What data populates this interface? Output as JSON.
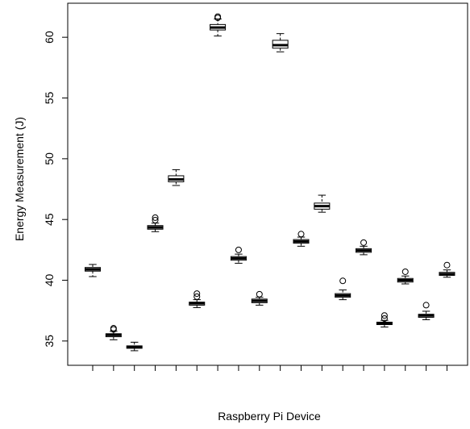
{
  "chart_data": {
    "type": "box",
    "title": "",
    "xlabel": "Raspberry Pi Device",
    "ylabel": "Energy Measurement (J)",
    "ylim": [
      33.0,
      62.8
    ],
    "yticks": [
      35,
      40,
      45,
      50,
      55,
      60
    ],
    "ytick_labels": [
      "35",
      "40",
      "45",
      "50",
      "55",
      "60"
    ],
    "x_tick_count": 18,
    "categories": [
      "",
      "",
      "",
      "",
      "",
      "",
      "",
      "",
      "",
      "",
      "",
      "",
      "",
      "",
      "",
      "",
      "",
      ""
    ],
    "boxes": [
      {
        "whisker_low": 40.3,
        "q1": 40.75,
        "median": 40.9,
        "q3": 41.05,
        "whisker_high": 41.3,
        "outliers": []
      },
      {
        "whisker_low": 35.1,
        "q1": 35.35,
        "median": 35.5,
        "q3": 35.6,
        "whisker_high": 35.8,
        "outliers": [
          35.95,
          36.05
        ]
      },
      {
        "whisker_low": 34.2,
        "q1": 34.4,
        "median": 34.5,
        "q3": 34.6,
        "whisker_high": 34.9,
        "outliers": []
      },
      {
        "whisker_low": 44.0,
        "q1": 44.2,
        "median": 44.35,
        "q3": 44.5,
        "whisker_high": 44.7,
        "outliers": [
          44.95,
          45.15
        ]
      },
      {
        "whisker_low": 47.8,
        "q1": 48.1,
        "median": 48.3,
        "q3": 48.6,
        "whisker_high": 49.1,
        "outliers": []
      },
      {
        "whisker_low": 37.75,
        "q1": 37.95,
        "median": 38.1,
        "q3": 38.2,
        "whisker_high": 38.4,
        "outliers": [
          38.65,
          38.9
        ]
      },
      {
        "whisker_low": 60.1,
        "q1": 60.6,
        "median": 60.8,
        "q3": 61.05,
        "whisker_high": 61.5,
        "outliers": [
          61.6,
          61.7
        ]
      },
      {
        "whisker_low": 41.4,
        "q1": 41.65,
        "median": 41.8,
        "q3": 41.95,
        "whisker_high": 42.15,
        "outliers": [
          42.5
        ]
      },
      {
        "whisker_low": 37.95,
        "q1": 38.15,
        "median": 38.3,
        "q3": 38.45,
        "whisker_high": 38.6,
        "outliers": [
          38.85
        ]
      },
      {
        "whisker_low": 58.8,
        "q1": 59.1,
        "median": 59.35,
        "q3": 59.75,
        "whisker_high": 60.3,
        "outliers": []
      },
      {
        "whisker_low": 42.8,
        "q1": 43.05,
        "median": 43.2,
        "q3": 43.35,
        "whisker_high": 43.55,
        "outliers": [
          43.8
        ]
      },
      {
        "whisker_low": 45.6,
        "q1": 45.85,
        "median": 46.1,
        "q3": 46.35,
        "whisker_high": 47.0,
        "outliers": []
      },
      {
        "whisker_low": 38.4,
        "q1": 38.6,
        "median": 38.75,
        "q3": 38.9,
        "whisker_high": 39.2,
        "outliers": [
          39.95
        ]
      },
      {
        "whisker_low": 42.1,
        "q1": 42.3,
        "median": 42.45,
        "q3": 42.6,
        "whisker_high": 42.8,
        "outliers": [
          43.1
        ]
      },
      {
        "whisker_low": 36.15,
        "q1": 36.35,
        "median": 36.45,
        "q3": 36.55,
        "whisker_high": 36.7,
        "outliers": [
          36.85,
          37.1
        ]
      },
      {
        "whisker_low": 39.7,
        "q1": 39.85,
        "median": 40.0,
        "q3": 40.15,
        "whisker_high": 40.35,
        "outliers": [
          40.7
        ]
      },
      {
        "whisker_low": 36.75,
        "q1": 36.95,
        "median": 37.1,
        "q3": 37.2,
        "whisker_high": 37.45,
        "outliers": [
          37.95
        ]
      },
      {
        "whisker_low": 40.25,
        "q1": 40.4,
        "median": 40.5,
        "q3": 40.65,
        "whisker_high": 40.85,
        "outliers": [
          41.25
        ]
      }
    ]
  }
}
